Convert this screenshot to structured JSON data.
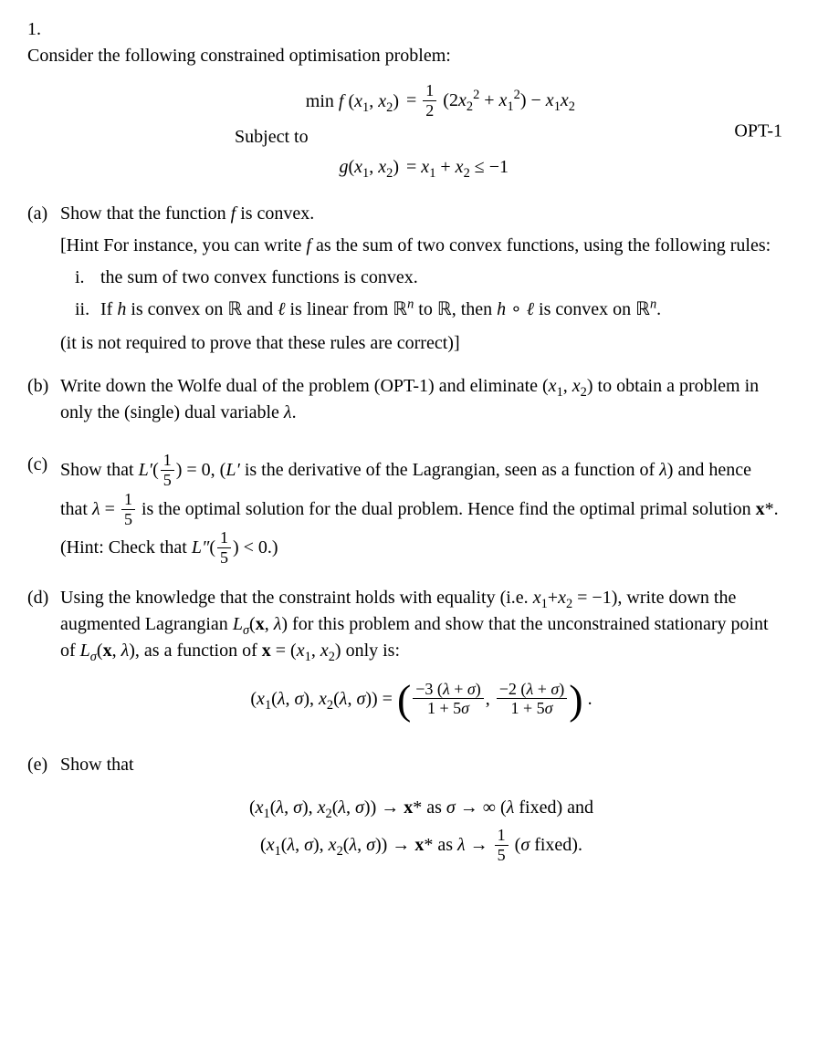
{
  "problem": {
    "number": "1.",
    "intro": "Consider the following constrained optimisation problem:",
    "equation": {
      "line1_lhs": "min f (x₁, x₂)",
      "line1_rhs_html": "= <span class='frac'><span class='num'>1</span><span class='den'>2</span></span> (2<span class='math'>x</span><sub>2</sub><sup>2</sup> + <span class='math'>x</span><sub>1</sub><sup>2</sup>) − <span class='math'>x</span><sub>1</sub><span class='math'>x</span><sub>2</sub>",
      "line2_lhs": "Subject to",
      "line3_lhs": "g(x₁, x₂)",
      "line3_rhs": "= x₁ + x₂ ≤ −1",
      "tag": "OPT-1"
    },
    "parts": {
      "a": {
        "label": "(a)",
        "text_html": "Show that the function <span class='math'>f</span> is convex.",
        "hint_html": "[Hint For instance, you can write <span class='math'>f</span> as the sum of two convex functions, using the following rules:",
        "sub_i_label": "i.",
        "sub_i_text": "the sum of two convex functions is convex.",
        "sub_ii_label": "ii.",
        "sub_ii_text_html": "If <span class='math'>h</span> is convex on <span class='bb'>ℝ</span> and <span class='math'>ℓ</span> is linear from <span class='bb'>ℝ</span><sup><span class='math'>n</span></sup> to <span class='bb'>ℝ</span>, then <span class='math'>h</span> ∘ <span class='math'>ℓ</span> is convex on <span class='bb'>ℝ</span><sup><span class='math'>n</span></sup>.",
        "closing": "(it is not required to prove that these rules are correct)]"
      },
      "b": {
        "label": "(b)",
        "text_html": "Write down the Wolfe dual of the problem (OPT-1) and eliminate (<span class='math'>x</span><sub>1</sub>, <span class='math'>x</span><sub>2</sub>) to obtain a problem in only the (single) dual variable <span class='math'>λ</span>."
      },
      "c": {
        "label": "(c)",
        "text_html": "Show that <span class='math'>L′</span>(<span class='frac'><span class='num'>1</span><span class='den'>5</span></span>) = 0, (<span class='math'>L′</span> is the derivative of the Lagrangian, seen as a function of <span class='math'>λ</span>) and hence that <span class='math'>λ</span> = <span class='frac'><span class='num'>1</span><span class='den'>5</span></span> is the optimal solution for the dual problem. Hence find the optimal primal solution <b>x</b>*. (Hint: Check that <span class='math'>L″</span>(<span class='frac'><span class='num'>1</span><span class='den'>5</span></span>) &lt; 0.)"
      },
      "d": {
        "label": "(d)",
        "text_html": "Using the knowledge that the constraint holds with equality (i.e. <span class='math'>x</span><sub>1</sub>+<span class='math'>x</span><sub>2</sub> = −1), write down the augmented Lagrangian <span class='math'>L<sub>σ</sub></span>(<b>x</b>, <span class='math'>λ</span>) for this problem and show that the unconstrained stationary point of <span class='math'>L<sub>σ</sub></span>(<b>x</b>, <span class='math'>λ</span>), as a function of <b>x</b> = (<span class='math'>x</span><sub>1</sub>, <span class='math'>x</span><sub>2</sub>) only is:",
        "equation_html": "(<span class='math'>x</span><sub>1</sub>(<span class='math'>λ</span>, <span class='math'>σ</span>), <span class='math'>x</span><sub>2</sub>(<span class='math'>λ</span>, <span class='math'>σ</span>)) = <span class='big-paren'>(</span><span class='frac'><span class='num'>−3 (<span class='math'>λ</span> + <span class='math'>σ</span>)</span><span class='den'>1 + 5<span class='math'>σ</span></span></span>, <span class='frac'><span class='num'>−2 (<span class='math'>λ</span> + <span class='math'>σ</span>)</span><span class='den'>1 + 5<span class='math'>σ</span></span></span><span class='big-paren'>)</span> ."
      },
      "e": {
        "label": "(e)",
        "text": "Show that",
        "eq1_html": "(<span class='math'>x</span><sub>1</sub>(<span class='math'>λ</span>, <span class='math'>σ</span>), <span class='math'>x</span><sub>2</sub>(<span class='math'>λ</span>, <span class='math'>σ</span>)) → <b>x</b>* as <span class='math'>σ</span> → ∞ (<span class='math'>λ</span> fixed) and",
        "eq2_html": "(<span class='math'>x</span><sub>1</sub>(<span class='math'>λ</span>, <span class='math'>σ</span>), <span class='math'>x</span><sub>2</sub>(<span class='math'>λ</span>, <span class='math'>σ</span>)) → <b>x</b>* as <span class='math'>λ</span> → <span class='frac'><span class='num'>1</span><span class='den'>5</span></span> (<span class='math'>σ</span> fixed)."
      }
    }
  }
}
